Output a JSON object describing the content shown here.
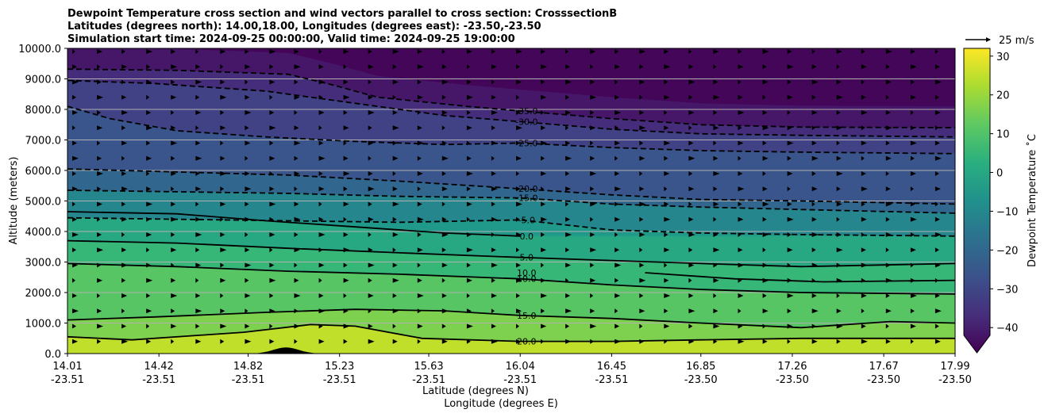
{
  "chart_data": {
    "type": "heatmap",
    "subtype": "filled-contour cross section with wind vectors",
    "title_lines": [
      "Dewpoint Temperature cross section and wind vectors parallel to cross section: CrosssectionB",
      "Latitudes (degrees north): 14.00,18.00, Longitudes (degrees east): -23.50,-23.50",
      "Simulation start time: 2024-09-25 00:00:00, Valid time: 2024-09-25 19:00:00"
    ],
    "ylabel": "Altitude (meters)",
    "xlabel_lines": [
      "Latitude (degrees N)",
      "Longitude (degrees E)"
    ],
    "ylim": [
      0,
      10000
    ],
    "y_ticks": [
      "0.0",
      "1000.0",
      "2000.0",
      "3000.0",
      "4000.0",
      "5000.0",
      "6000.0",
      "7000.0",
      "8000.0",
      "9000.0",
      "10000.0"
    ],
    "y_tick_values": [
      0,
      1000,
      2000,
      3000,
      4000,
      5000,
      6000,
      7000,
      8000,
      9000,
      10000
    ],
    "x_range": [
      14.01,
      17.99
    ],
    "x_ticks": [
      {
        "lat": "14.01",
        "lon": "-23.51",
        "value": 14.01
      },
      {
        "lat": "14.42",
        "lon": "-23.51",
        "value": 14.42
      },
      {
        "lat": "14.82",
        "lon": "-23.51",
        "value": 14.82
      },
      {
        "lat": "15.23",
        "lon": "-23.51",
        "value": 15.23
      },
      {
        "lat": "15.63",
        "lon": "-23.51",
        "value": 15.63
      },
      {
        "lat": "16.04",
        "lon": "-23.51",
        "value": 16.04
      },
      {
        "lat": "16.45",
        "lon": "-23.51",
        "value": 16.45
      },
      {
        "lat": "16.85",
        "lon": "-23.50",
        "value": 16.85
      },
      {
        "lat": "17.26",
        "lon": "-23.50",
        "value": 17.26
      },
      {
        "lat": "17.67",
        "lon": "-23.50",
        "value": 17.67
      },
      {
        "lat": "17.99",
        "lon": "-23.50",
        "value": 17.99
      }
    ],
    "grid": "horizontal",
    "colorbar": {
      "label": "Dewpoint Temperature $^\\circ$C",
      "label_text": "Dewpoint Temperature ˚C",
      "range": [
        -42,
        32
      ],
      "ticks": [
        "30",
        "20",
        "10",
        "0",
        "−10",
        "−20",
        "−30",
        "−40"
      ],
      "tick_values": [
        30,
        20,
        10,
        0,
        -10,
        -20,
        -30,
        -40
      ],
      "extend": "min",
      "colormap": "viridis"
    },
    "quiver_key": {
      "label": "25 m/s",
      "speed": 25
    },
    "contour_levels": [
      {
        "label": "-35.0",
        "value": -35,
        "dashed": true,
        "points": [
          [
            14.01,
            9320
          ],
          [
            14.5,
            9280
          ],
          [
            15.0,
            9150
          ],
          [
            15.2,
            8800
          ],
          [
            15.4,
            8400
          ],
          [
            15.8,
            8100
          ],
          [
            16.04,
            7950
          ],
          [
            16.45,
            7700
          ],
          [
            16.85,
            7500
          ],
          [
            17.3,
            7420
          ],
          [
            17.99,
            7400
          ]
        ]
      },
      {
        "label": "-30.0",
        "value": -30,
        "dashed": true,
        "points": [
          [
            14.01,
            8950
          ],
          [
            14.4,
            8850
          ],
          [
            14.9,
            8600
          ],
          [
            15.3,
            8200
          ],
          [
            15.7,
            7800
          ],
          [
            16.04,
            7600
          ],
          [
            16.45,
            7350
          ],
          [
            16.85,
            7200
          ],
          [
            17.3,
            7150
          ],
          [
            17.99,
            7100
          ]
        ]
      },
      {
        "label": "-25.0",
        "value": -25,
        "dashed": true,
        "points": [
          [
            14.01,
            8100
          ],
          [
            14.2,
            7700
          ],
          [
            14.5,
            7300
          ],
          [
            14.9,
            7100
          ],
          [
            15.3,
            6950
          ],
          [
            15.7,
            6850
          ],
          [
            16.04,
            6900
          ],
          [
            16.45,
            6750
          ],
          [
            16.85,
            6650
          ],
          [
            17.3,
            6600
          ],
          [
            17.99,
            6550
          ]
        ]
      },
      {
        "label": "-20.0",
        "value": -20,
        "dashed": true,
        "points": [
          [
            14.01,
            6050
          ],
          [
            14.5,
            5950
          ],
          [
            15.0,
            5850
          ],
          [
            15.5,
            5650
          ],
          [
            16.04,
            5400
          ],
          [
            16.45,
            5200
          ],
          [
            16.85,
            5050
          ],
          [
            17.3,
            5000
          ],
          [
            17.99,
            4900
          ]
        ]
      },
      {
        "label": "-15.0",
        "value": -15,
        "dashed": true,
        "points": [
          [
            14.01,
            5350
          ],
          [
            14.5,
            5300
          ],
          [
            15.0,
            5250
          ],
          [
            15.5,
            5150
          ],
          [
            16.04,
            5100
          ],
          [
            16.45,
            4900
          ],
          [
            16.85,
            4800
          ],
          [
            17.3,
            4720
          ],
          [
            17.99,
            4600
          ]
        ]
      },
      {
        "label": "-5.0",
        "value": -5,
        "dashed": true,
        "points": [
          [
            14.01,
            4450
          ],
          [
            14.5,
            4400
          ],
          [
            15.0,
            4350
          ],
          [
            15.5,
            4300
          ],
          [
            16.04,
            4380
          ],
          [
            16.45,
            4050
          ],
          [
            16.85,
            3950
          ],
          [
            17.3,
            3900
          ],
          [
            17.99,
            3850
          ]
        ]
      },
      {
        "label": "0.0",
        "value": 0,
        "dashed": false,
        "points": [
          [
            14.01,
            4650
          ],
          [
            14.5,
            4580
          ],
          [
            14.9,
            4350
          ],
          [
            15.3,
            4150
          ],
          [
            15.7,
            3950
          ],
          [
            16.04,
            3850
          ]
        ]
      },
      {
        "label": "5.0",
        "value": 5,
        "dashed": false,
        "points": [
          [
            14.01,
            3700
          ],
          [
            14.5,
            3620
          ],
          [
            15.0,
            3450
          ],
          [
            15.5,
            3300
          ],
          [
            16.04,
            3150
          ],
          [
            16.45,
            3050
          ],
          [
            16.85,
            2950
          ],
          [
            17.3,
            2850
          ],
          [
            17.99,
            2950
          ]
        ]
      },
      {
        "label": "10.0",
        "value": 10,
        "dashed": false,
        "points": [
          [
            14.01,
            2950
          ],
          [
            14.5,
            2850
          ],
          [
            15.0,
            2700
          ],
          [
            15.5,
            2600
          ],
          [
            16.04,
            2450
          ],
          [
            16.45,
            2250
          ],
          [
            16.85,
            2100
          ],
          [
            17.3,
            2000
          ],
          [
            17.99,
            1950
          ]
        ]
      },
      {
        "label": "10.0",
        "value": 10,
        "dashed": false,
        "points": [
          [
            16.6,
            2650
          ],
          [
            17.0,
            2450
          ],
          [
            17.4,
            2350
          ],
          [
            17.99,
            2400
          ]
        ]
      },
      {
        "label": "15.0",
        "value": 15,
        "dashed": false,
        "points": [
          [
            14.01,
            1100
          ],
          [
            14.4,
            1200
          ],
          [
            14.9,
            1350
          ],
          [
            15.3,
            1450
          ],
          [
            15.7,
            1400
          ],
          [
            16.04,
            1250
          ],
          [
            16.45,
            1150
          ],
          [
            16.85,
            1000
          ],
          [
            17.3,
            850
          ],
          [
            17.7,
            1050
          ],
          [
            17.99,
            1000
          ]
        ]
      },
      {
        "label": "20.0",
        "value": 20,
        "dashed": false,
        "points": [
          [
            14.01,
            550
          ],
          [
            14.3,
            450
          ],
          [
            14.8,
            700
          ],
          [
            15.1,
            950
          ],
          [
            15.3,
            900
          ],
          [
            15.6,
            500
          ],
          [
            16.04,
            400
          ],
          [
            16.45,
            400
          ],
          [
            16.85,
            450
          ],
          [
            17.3,
            500
          ],
          [
            17.99,
            500
          ]
        ]
      }
    ],
    "terrain": {
      "peak_lat": 14.99,
      "peak_height": 200,
      "half_width": 0.1
    }
  }
}
